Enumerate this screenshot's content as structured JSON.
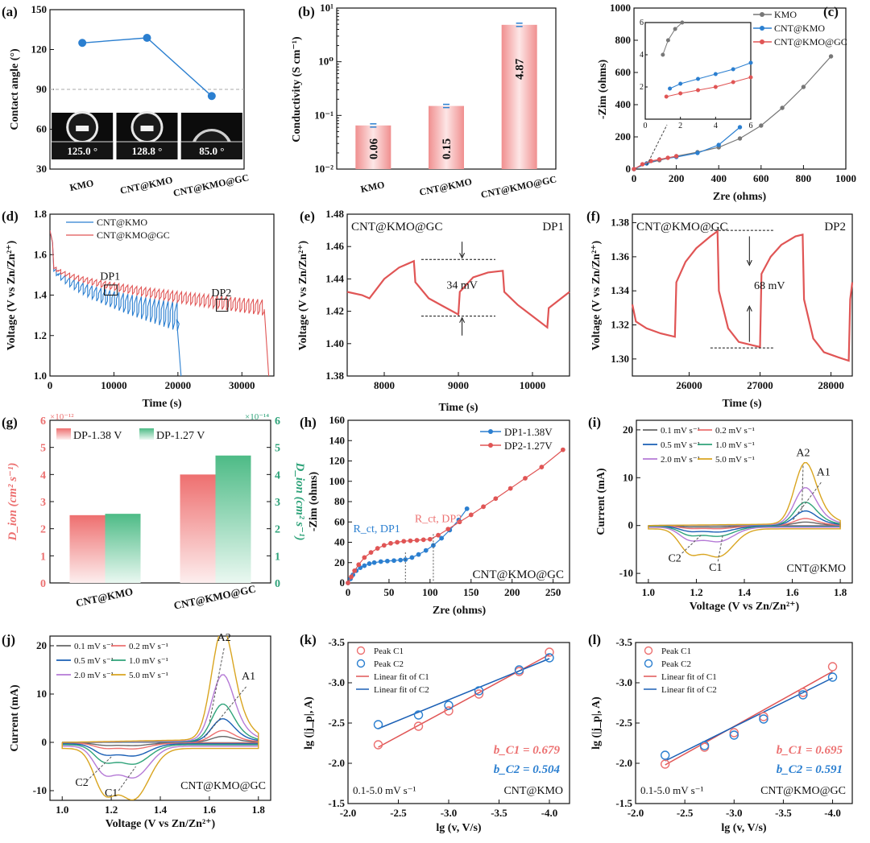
{
  "colors": {
    "red": "#e05555",
    "blue": "#2b7fd0",
    "gray": "#777777",
    "green": "#5cbf8c",
    "bar": "#f4a3a3",
    "yellow": "#d9a520",
    "purple": "#b57ad6",
    "darkblue": "#1a5fb5",
    "lightred": "#ec7070",
    "teal": "#2fa37a"
  },
  "chart_data": [
    {
      "id": "a",
      "type": "line",
      "panel_label": "(a)",
      "ylabel": "Contact angle (°)",
      "ylim": [
        30,
        150
      ],
      "yticks": [
        30,
        60,
        90,
        120,
        150
      ],
      "categories": [
        "KMO",
        "CNT@KMO",
        "CNT@KMO@GC"
      ],
      "values": [
        125.0,
        128.8,
        85.0
      ],
      "ref_line": 90,
      "image_labels": [
        "125.0 °",
        "128.8 °",
        "85.0 °"
      ]
    },
    {
      "id": "b",
      "type": "bar",
      "panel_label": "(b)",
      "ylabel": "Conductivity (S cm⁻¹)",
      "yscale": "log",
      "ylim": [
        0.01,
        10
      ],
      "yticks": [
        "10⁻²",
        "10⁻¹",
        "10⁰",
        "10¹"
      ],
      "categories": [
        "KMO",
        "CNT@KMO",
        "CNT@KMO@GC"
      ],
      "values": [
        0.065,
        0.15,
        4.87
      ],
      "data_labels": [
        "0.06",
        "0.15",
        "4.87"
      ]
    },
    {
      "id": "c",
      "type": "line",
      "panel_label": "(c)",
      "xlabel": "Zre (ohms)",
      "ylabel": "-Zim (ohms)",
      "xlim": [
        0,
        1000
      ],
      "ylim": [
        0,
        1000
      ],
      "xticks": [
        0,
        200,
        400,
        600,
        800,
        1000
      ],
      "yticks": [
        0,
        200,
        400,
        600,
        800,
        1000
      ],
      "series": [
        {
          "name": "KMO",
          "x": [
            0,
            60,
            120,
            200,
            300,
            400,
            500,
            600,
            700,
            800,
            930
          ],
          "y": [
            0,
            35,
            55,
            80,
            105,
            135,
            190,
            270,
            380,
            510,
            700
          ]
        },
        {
          "name": "CNT@KMO",
          "x": [
            0,
            60,
            120,
            200,
            300,
            400,
            500
          ],
          "y": [
            0,
            35,
            60,
            75,
            100,
            150,
            260
          ]
        },
        {
          "name": "CNT@KMO@GC",
          "x": [
            0,
            40,
            80,
            120,
            160,
            200
          ],
          "y": [
            0,
            30,
            50,
            60,
            70,
            80
          ]
        }
      ],
      "inset": {
        "xlim": [
          0,
          6
        ],
        "ylim": [
          0,
          6
        ],
        "xticks": [
          0,
          2,
          4,
          6
        ],
        "yticks": [
          2,
          4,
          6
        ],
        "series": [
          {
            "name": "KMO",
            "x": [
              1.0,
              1.3,
              1.7,
              2.1
            ],
            "y": [
              4.0,
              4.9,
              5.6,
              6.0
            ]
          },
          {
            "name": "CNT@KMO",
            "x": [
              1.4,
              2,
              3,
              4,
              5,
              6
            ],
            "y": [
              1.9,
              2.2,
              2.5,
              2.8,
              3.1,
              3.5
            ]
          },
          {
            "name": "CNT@KMO@GC",
            "x": [
              1.2,
              2,
              3,
              4,
              5,
              6
            ],
            "y": [
              1.4,
              1.6,
              1.8,
              2.0,
              2.3,
              2.6
            ]
          }
        ]
      }
    },
    {
      "id": "d",
      "type": "line",
      "panel_label": "(d)",
      "xlabel": "Time (s)",
      "ylabel": "Voltage (V vs Zn/Zn²⁺)",
      "xlim": [
        0,
        35000
      ],
      "ylim": [
        1.0,
        1.8
      ],
      "xticks": [
        0,
        10000,
        20000,
        30000
      ],
      "yticks": [
        1.0,
        1.2,
        1.4,
        1.6,
        1.8
      ],
      "series": [
        {
          "name": "CNT@KMO",
          "end_time": 20500
        },
        {
          "name": "CNT@KMO@GC",
          "end_time": 34200
        }
      ],
      "annotations": [
        "DP1",
        "DP2"
      ]
    },
    {
      "id": "e",
      "type": "line",
      "panel_label": "(e)",
      "xlabel": "Time (s)",
      "ylabel": "Voltage (V vs Zn/Zn²⁺)",
      "xlim": [
        7500,
        10500
      ],
      "ylim": [
        1.38,
        1.48
      ],
      "xticks": [
        8000,
        9000,
        10000
      ],
      "yticks": [
        1.38,
        1.4,
        1.42,
        1.44,
        1.46,
        1.48
      ],
      "title": "CNT@KMO@GC",
      "tag": "DP1",
      "delta": "34 mV",
      "x": [
        7500,
        7700,
        7800,
        8000,
        8200,
        8400,
        8420,
        8600,
        8800,
        9000,
        9020,
        9200,
        9400,
        9600,
        9620,
        9800,
        10000,
        10200,
        10220,
        10500
      ],
      "y": [
        1.432,
        1.43,
        1.428,
        1.44,
        1.447,
        1.451,
        1.438,
        1.428,
        1.423,
        1.418,
        1.432,
        1.441,
        1.444,
        1.445,
        1.432,
        1.424,
        1.417,
        1.41,
        1.422,
        1.432
      ]
    },
    {
      "id": "f",
      "type": "line",
      "panel_label": "(f)",
      "xlabel": "Time (s)",
      "ylabel": "Voltage (V vs Zn/Zn²⁺)",
      "xlim": [
        25200,
        28300
      ],
      "ylim": [
        1.29,
        1.385
      ],
      "xticks": [
        26000,
        27000,
        28000
      ],
      "yticks": [
        1.3,
        1.32,
        1.34,
        1.36,
        1.38
      ],
      "title": "CNT@KMO@GC",
      "tag": "DP2",
      "delta": "68 mV",
      "x": [
        25200,
        25250,
        25400,
        25600,
        25800,
        25820,
        25950,
        26100,
        26300,
        26400,
        26420,
        26550,
        26700,
        26900,
        27000,
        27020,
        27150,
        27300,
        27500,
        27600,
        27620,
        27750,
        27900,
        28100,
        28250,
        28270,
        28300
      ],
      "y": [
        1.332,
        1.322,
        1.318,
        1.315,
        1.313,
        1.345,
        1.357,
        1.365,
        1.372,
        1.375,
        1.34,
        1.318,
        1.31,
        1.308,
        1.307,
        1.35,
        1.36,
        1.367,
        1.372,
        1.373,
        1.335,
        1.312,
        1.304,
        1.301,
        1.299,
        1.335,
        1.345
      ]
    },
    {
      "id": "g",
      "type": "bar",
      "panel_label": "(g)",
      "ylabel": "D_ion (cm² s⁻¹)",
      "ylabel_right": "D_ion (cm² s⁻¹)",
      "ylim": [
        0,
        6
      ],
      "ylim_right": [
        0,
        6
      ],
      "yticks": [
        0,
        1,
        2,
        3,
        4,
        5,
        6
      ],
      "exp_left": "×10⁻¹²",
      "exp_right": "×10⁻¹⁴",
      "categories": [
        "CNT@KMO",
        "CNT@KMO@GC"
      ],
      "series": [
        {
          "name": "DP-1.38 V",
          "values": [
            2.5,
            4.0
          ]
        },
        {
          "name": "DP-1.27 V",
          "values": [
            2.55,
            4.7
          ]
        }
      ]
    },
    {
      "id": "h",
      "type": "scatter",
      "panel_label": "(h)",
      "xlabel": "Zre (ohms)",
      "ylabel": "-Zim (ohms)",
      "xlim": [
        0,
        270
      ],
      "ylim": [
        0,
        160
      ],
      "xticks": [
        0,
        50,
        100,
        150,
        200,
        250
      ],
      "yticks": [
        0,
        20,
        40,
        60,
        80,
        100,
        120,
        140,
        160
      ],
      "label": "CNT@KMO@GC",
      "annotations": [
        "R_ct, DP1",
        "R_ct, DP2"
      ],
      "series": [
        {
          "name": "DP1-1.38V",
          "x": [
            0,
            3,
            6,
            10,
            15,
            20,
            26,
            32,
            40,
            48,
            56,
            64,
            70,
            78,
            86,
            95,
            104,
            114,
            124,
            135,
            145
          ],
          "y": [
            0,
            4,
            8,
            12,
            15,
            17,
            19,
            20,
            21,
            21.5,
            22,
            22.5,
            23,
            25,
            28,
            32,
            37,
            44,
            52,
            62,
            73
          ]
        },
        {
          "name": "DP2-1.27V",
          "x": [
            0,
            4,
            8,
            13,
            20,
            28,
            36,
            44,
            52,
            60,
            68,
            76,
            84,
            92,
            100,
            110,
            122,
            136,
            150,
            165,
            180,
            198,
            216,
            236,
            262
          ],
          "y": [
            0,
            6,
            12,
            18,
            25,
            30,
            34,
            37,
            39,
            40,
            41,
            41.5,
            42,
            42.5,
            43,
            47,
            53,
            60,
            67,
            75,
            83,
            93,
            103,
            114,
            131
          ]
        }
      ]
    },
    {
      "id": "i",
      "type": "line",
      "panel_label": "(i)",
      "xlabel": "Voltage (V vs Zn/Zn²⁺)",
      "ylabel": "Current (mA)",
      "xlim": [
        0.95,
        1.85
      ],
      "ylim": [
        -12,
        22
      ],
      "xticks": [
        1.0,
        1.2,
        1.4,
        1.6,
        1.8
      ],
      "yticks": [
        -10,
        0,
        10,
        20
      ],
      "label": "CNT@KMO",
      "annotations": [
        "A2",
        "A1",
        "C2",
        "C1"
      ],
      "series": [
        {
          "name": "0.1 mV s⁻¹",
          "a2": 0.6,
          "c1": -0.3
        },
        {
          "name": "0.2 mV s⁻¹",
          "a2": 1.2,
          "c1": -0.6
        },
        {
          "name": "0.5 mV s⁻¹",
          "a2": 2.5,
          "c1": -1.2
        },
        {
          "name": "1.0 mV s⁻¹",
          "a2": 4.0,
          "c1": -2.0
        },
        {
          "name": "2.0 mV s⁻¹",
          "a2": 6.5,
          "c1": -3.0
        },
        {
          "name": "5.0 mV s⁻¹",
          "a2": 10.8,
          "c1": -5.8
        }
      ]
    },
    {
      "id": "j",
      "type": "line",
      "panel_label": "(j)",
      "xlabel": "Voltage (V vs Zn/Zn²⁺)",
      "ylabel": "Current (mA)",
      "xlim": [
        0.95,
        1.85
      ],
      "ylim": [
        -12,
        22
      ],
      "xticks": [
        1.0,
        1.2,
        1.4,
        1.6,
        1.8
      ],
      "yticks": [
        -10,
        0,
        10,
        20
      ],
      "label": "CNT@KMO@GC",
      "annotations": [
        "A2",
        "A1",
        "C2",
        "C1"
      ],
      "series": [
        {
          "name": "0.1 mV s⁻¹",
          "a2": 1.0,
          "c1": -0.6
        },
        {
          "name": "0.2 mV s⁻¹",
          "a2": 2.0,
          "c1": -1.2
        },
        {
          "name": "0.5 mV s⁻¹",
          "a2": 4.0,
          "c1": -2.5
        },
        {
          "name": "1.0 mV s⁻¹",
          "a2": 6.5,
          "c1": -4.0
        },
        {
          "name": "2.0 mV s⁻¹",
          "a2": 11.5,
          "c1": -6.5
        },
        {
          "name": "5.0 mV s⁻¹",
          "a2": 19.3,
          "c1": -10.5
        }
      ]
    },
    {
      "id": "k",
      "type": "scatter",
      "panel_label": "(k)",
      "xlabel": "lg (v, V/s)",
      "ylabel": "lg (|j_p|, A)",
      "xlim": [
        -2.0,
        -4.2
      ],
      "ylim": [
        -1.5,
        -3.5
      ],
      "xticks": [
        -2.0,
        -2.5,
        -3.0,
        -3.5,
        -4.0
      ],
      "yticks": [
        -1.5,
        -2.0,
        -2.5,
        -3.0,
        -3.5
      ],
      "xtick_labels": [
        "-2.0",
        "-2.5",
        "-3.0",
        "-3.5",
        "-4.0"
      ],
      "ytick_labels": [
        "-1.5",
        "-2.0",
        "-2.5",
        "-3.0",
        "-3.5"
      ],
      "label": "CNT@KMO",
      "range_text": "0.1-5.0 mV s⁻¹",
      "b_c1": "b_C1 = 0.679",
      "b_c2": "b_C2 = 0.504",
      "series": [
        {
          "name": "Peak C1",
          "x": [
            -2.3,
            -2.7,
            -3.0,
            -3.3,
            -3.7,
            -4.0
          ],
          "y": [
            -2.23,
            -2.46,
            -2.65,
            -2.86,
            -3.14,
            -3.38
          ]
        },
        {
          "name": "Peak C2",
          "x": [
            -2.3,
            -2.7,
            -3.0,
            -3.3,
            -3.7,
            -4.0
          ],
          "y": [
            -2.48,
            -2.6,
            -2.72,
            -2.9,
            -3.16,
            -3.31
          ]
        },
        {
          "name": "Linear fit of C1",
          "x": [
            -2.3,
            -4.0
          ],
          "y": [
            -2.2,
            -3.35
          ]
        },
        {
          "name": "Linear fit of C2",
          "x": [
            -2.3,
            -4.0
          ],
          "y": [
            -2.43,
            -3.3
          ]
        }
      ]
    },
    {
      "id": "l",
      "type": "scatter",
      "panel_label": "(l)",
      "xlabel": "lg (v, V/s)",
      "ylabel": "lg (|j_p|, A)",
      "xlim": [
        -2.0,
        -4.2
      ],
      "ylim": [
        -1.5,
        -3.5
      ],
      "xticks": [
        -2.0,
        -2.5,
        -3.0,
        -3.5,
        -4.0
      ],
      "yticks": [
        -1.5,
        -2.0,
        -2.5,
        -3.0,
        -3.5
      ],
      "xtick_labels": [
        "-2.0",
        "-2.5",
        "-3.0",
        "-3.5",
        "-4.0"
      ],
      "ytick_labels": [
        "-1.5",
        "-2.0",
        "-2.5",
        "-3.0",
        "-3.5"
      ],
      "label": "CNT@KMO@GC",
      "range_text": "0.1-5.0 mV s⁻¹",
      "b_c1": "b_C1 = 0.695",
      "b_c2": "b_C2 = 0.591",
      "series": [
        {
          "name": "Peak C1",
          "x": [
            -2.3,
            -2.7,
            -3.0,
            -3.3,
            -3.7,
            -4.0
          ],
          "y": [
            -1.99,
            -2.2,
            -2.38,
            -2.58,
            -2.88,
            -3.2
          ]
        },
        {
          "name": "Peak C2",
          "x": [
            -2.3,
            -2.7,
            -3.0,
            -3.3,
            -3.7,
            -4.0
          ],
          "y": [
            -2.1,
            -2.22,
            -2.35,
            -2.55,
            -2.85,
            -3.07
          ]
        },
        {
          "name": "Linear fit of C1",
          "x": [
            -2.3,
            -4.0
          ],
          "y": [
            -1.98,
            -3.14
          ]
        },
        {
          "name": "Linear fit of C2",
          "x": [
            -2.3,
            -4.0
          ],
          "y": [
            -2.03,
            -3.06
          ]
        }
      ]
    }
  ]
}
